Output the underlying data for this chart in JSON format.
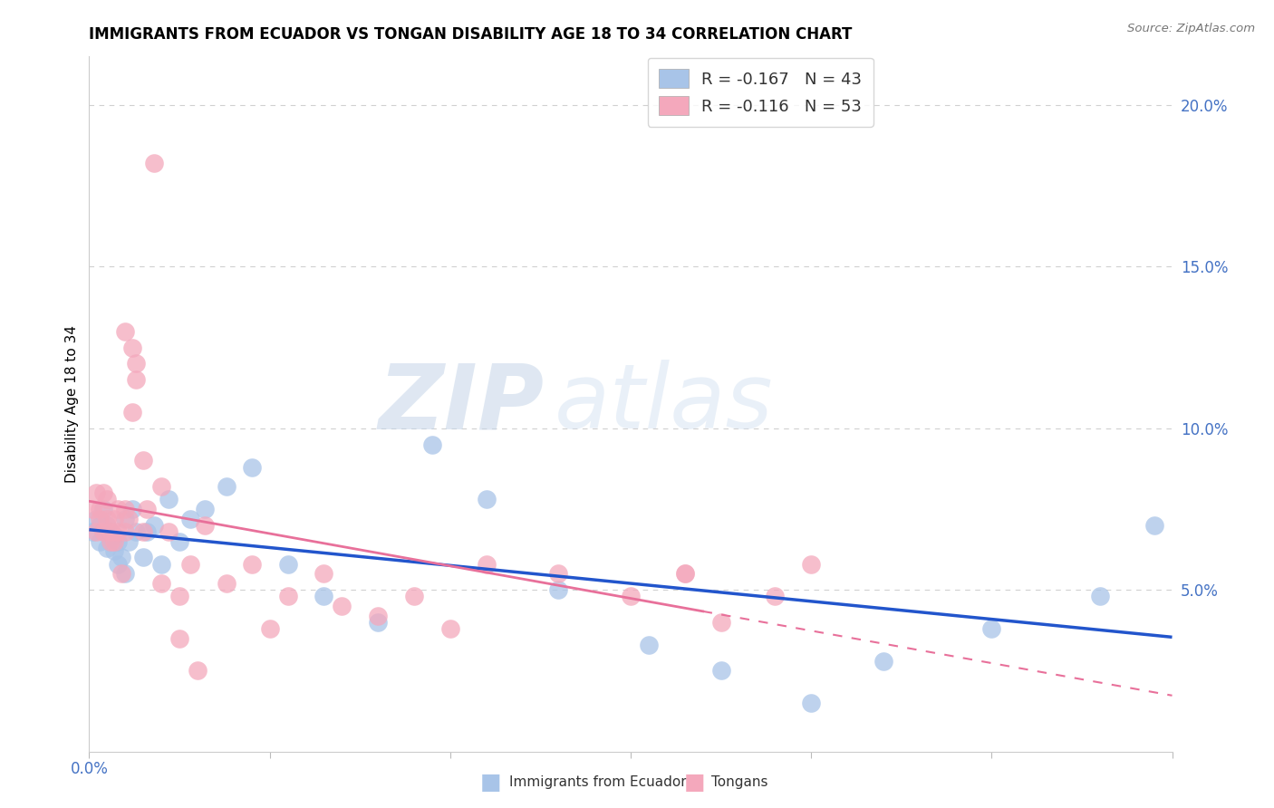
{
  "title": "IMMIGRANTS FROM ECUADOR VS TONGAN DISABILITY AGE 18 TO 34 CORRELATION CHART",
  "source": "Source: ZipAtlas.com",
  "ylabel": "Disability Age 18 to 34",
  "watermark_zip": "ZIP",
  "watermark_atlas": "atlas",
  "legend_r_ecuador": "-0.167",
  "legend_n_ecuador": "43",
  "legend_r_tongan": "-0.116",
  "legend_n_tongan": "53",
  "ecuador_color": "#a8c4e8",
  "tongan_color": "#f4a8bc",
  "ecuador_line_color": "#2255cc",
  "tongan_line_color": "#e8709a",
  "right_axis_color": "#4472c4",
  "grid_color": "#d0d0d0",
  "background": "#ffffff",
  "xlim": [
    0.0,
    0.3
  ],
  "ylim": [
    0.0,
    0.215
  ],
  "right_ytick_vals": [
    0.05,
    0.1,
    0.15,
    0.2
  ],
  "right_ytick_labels": [
    "5.0%",
    "10.0%",
    "15.0%",
    "20.0%"
  ],
  "title_fontsize": 12,
  "axis_fontsize": 11,
  "tick_fontsize": 12,
  "ecuador_x": [
    0.001,
    0.002,
    0.003,
    0.003,
    0.004,
    0.004,
    0.005,
    0.005,
    0.006,
    0.006,
    0.007,
    0.007,
    0.008,
    0.008,
    0.009,
    0.01,
    0.01,
    0.011,
    0.012,
    0.013,
    0.015,
    0.016,
    0.018,
    0.02,
    0.022,
    0.025,
    0.028,
    0.032,
    0.038,
    0.045,
    0.055,
    0.065,
    0.08,
    0.095,
    0.11,
    0.13,
    0.155,
    0.175,
    0.2,
    0.22,
    0.25,
    0.28,
    0.295
  ],
  "ecuador_y": [
    0.068,
    0.072,
    0.065,
    0.07,
    0.068,
    0.075,
    0.063,
    0.07,
    0.065,
    0.068,
    0.062,
    0.067,
    0.058,
    0.065,
    0.06,
    0.055,
    0.072,
    0.065,
    0.075,
    0.068,
    0.06,
    0.068,
    0.07,
    0.058,
    0.078,
    0.065,
    0.072,
    0.075,
    0.082,
    0.088,
    0.058,
    0.048,
    0.04,
    0.095,
    0.078,
    0.05,
    0.033,
    0.025,
    0.015,
    0.028,
    0.038,
    0.048,
    0.07
  ],
  "tongan_x": [
    0.001,
    0.002,
    0.002,
    0.003,
    0.003,
    0.004,
    0.004,
    0.005,
    0.005,
    0.006,
    0.006,
    0.007,
    0.007,
    0.008,
    0.008,
    0.009,
    0.01,
    0.01,
    0.011,
    0.012,
    0.013,
    0.015,
    0.016,
    0.018,
    0.02,
    0.022,
    0.025,
    0.028,
    0.032,
    0.038,
    0.045,
    0.05,
    0.055,
    0.065,
    0.07,
    0.08,
    0.09,
    0.1,
    0.11,
    0.13,
    0.15,
    0.165,
    0.175,
    0.19,
    0.2,
    0.01,
    0.012,
    0.013,
    0.015,
    0.02,
    0.165,
    0.025,
    0.03
  ],
  "tongan_y": [
    0.075,
    0.08,
    0.068,
    0.072,
    0.075,
    0.08,
    0.068,
    0.072,
    0.078,
    0.065,
    0.068,
    0.072,
    0.065,
    0.075,
    0.068,
    0.055,
    0.068,
    0.075,
    0.072,
    0.125,
    0.12,
    0.068,
    0.075,
    0.182,
    0.052,
    0.068,
    0.048,
    0.058,
    0.07,
    0.052,
    0.058,
    0.038,
    0.048,
    0.055,
    0.045,
    0.042,
    0.048,
    0.038,
    0.058,
    0.055,
    0.048,
    0.055,
    0.04,
    0.048,
    0.058,
    0.13,
    0.105,
    0.115,
    0.09,
    0.082,
    0.055,
    0.035,
    0.025
  ]
}
